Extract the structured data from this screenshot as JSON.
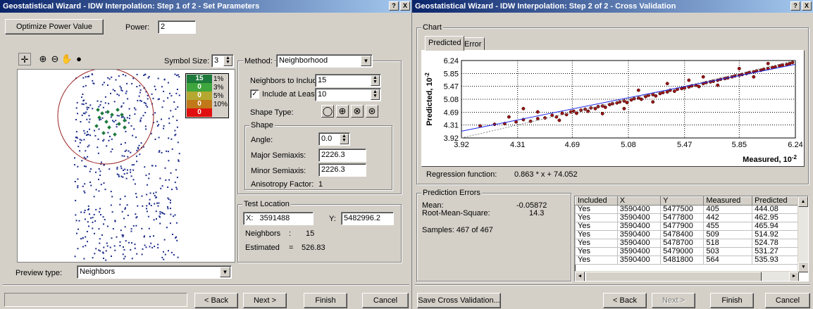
{
  "window1": {
    "title": "Geostatistical Wizard - IDW Interpolation: Step 1 of 2 - Set Parameters",
    "help_btn": "?",
    "close_btn": "X",
    "optimize_label": "Optimize Power Value",
    "power_label": "Power:",
    "power_value": "2",
    "symbol_size_label": "Symbol Size:",
    "symbol_size_value": "3",
    "legend": [
      {
        "label": "15",
        "pct": "1%",
        "color": "#1e7a3c"
      },
      {
        "label": "0",
        "pct": "3%",
        "color": "#3ea63c"
      },
      {
        "label": "0",
        "pct": "5%",
        "color": "#b4a830"
      },
      {
        "label": "0",
        "pct": "10%",
        "color": "#c07818"
      },
      {
        "label": "0",
        "pct": "",
        "color": "#e01010"
      }
    ],
    "method_label": "Method:",
    "method_value": "Neighborhood",
    "neighbors_label": "Neighbors to Include:",
    "neighbors_value": "15",
    "include_least_label": "Include at Least:",
    "include_least_value": "10",
    "include_least_checked": "✓",
    "shape_type_label": "Shape Type:",
    "shape_group_label": "Shape",
    "angle_label": "Angle:",
    "angle_value": "0.0",
    "major_label": "Major Semiaxis:",
    "major_value": "2226.3",
    "minor_label": "Minor Semiaxis:",
    "minor_value": "2226.3",
    "aniso_label": "Anisotropy Factor:",
    "aniso_value": "1",
    "test_group_label": "Test Location",
    "x_label": "X:",
    "x_value": "3591488",
    "y_label": "Y:",
    "y_value": "5482996.2",
    "neighbors_count_label": "Neighbors",
    "neighbors_count_sep": ":",
    "neighbors_count_value": "15",
    "estimated_label": "Estimated",
    "estimated_sep": "=",
    "estimated_value": "526.83",
    "preview_type_label": "Preview type:",
    "preview_type_value": "Neighbors",
    "back_btn": "< Back",
    "next_btn": "Next >",
    "finish_btn": "Finish",
    "cancel_btn": "Cancel"
  },
  "window2": {
    "title": "Geostatistical Wizard - IDW Interpolation: Step 2 of 2 - Cross Validation",
    "help_btn": "?",
    "close_btn": "X",
    "chart_group_label": "Chart",
    "tab_predicted": "Predicted",
    "tab_error": "Error",
    "regression_label": "Regression function:",
    "regression_value": "0.863 * x + 74.052",
    "pred_errors_label": "Prediction Errors",
    "mean_label": "Mean:",
    "mean_value": "-0.05872",
    "rms_label": "Root-Mean-Square:",
    "rms_value": "14.3",
    "samples_label": "Samples: 467 of 467",
    "table": {
      "headers": [
        "Included",
        "X",
        "Y",
        "Measured",
        "Predicted"
      ],
      "rows": [
        [
          "Yes",
          "3590400",
          "5477500",
          "405",
          "444.08"
        ],
        [
          "Yes",
          "3590400",
          "5477800",
          "442",
          "462.95"
        ],
        [
          "Yes",
          "3590400",
          "5477900",
          "455",
          "465.94"
        ],
        [
          "Yes",
          "3590400",
          "5478400",
          "509",
          "514.92"
        ],
        [
          "Yes",
          "3590400",
          "5478700",
          "518",
          "524.78"
        ],
        [
          "Yes",
          "3590400",
          "5479000",
          "503",
          "531.27"
        ],
        [
          "Yes",
          "3590400",
          "5481800",
          "564",
          "535.93"
        ]
      ]
    },
    "save_cv_btn": "Save Cross Validation...",
    "back_btn": "< Back",
    "next_btn": "Next >",
    "finish_btn": "Finish",
    "cancel_btn": "Cancel"
  },
  "chart_data": {
    "type": "scatter",
    "ylabel": "Predicted, 10",
    "ylabel_exp": "-2",
    "xlabel": "Measured, 10",
    "xlabel_exp": "-2",
    "x_ticks": [
      "3.92",
      "4.31",
      "4.69",
      "5.08",
      "5.47",
      "5.85",
      "6.24"
    ],
    "y_ticks": [
      "6.24",
      "5.85",
      "5.47",
      "5.08",
      "4.69",
      "4.31",
      "3.92"
    ],
    "xlim": [
      3.92,
      6.24
    ],
    "ylim": [
      3.92,
      6.24
    ],
    "regression": {
      "slope": 0.863,
      "intercept_scaled": 0.74052
    },
    "points": [
      [
        4.05,
        4.28
      ],
      [
        4.15,
        4.33
      ],
      [
        4.22,
        4.35
      ],
      [
        4.3,
        4.4
      ],
      [
        4.35,
        4.47
      ],
      [
        4.4,
        4.42
      ],
      [
        4.45,
        4.5
      ],
      [
        4.5,
        4.52
      ],
      [
        4.55,
        4.6
      ],
      [
        4.58,
        4.55
      ],
      [
        4.62,
        4.66
      ],
      [
        4.65,
        4.62
      ],
      [
        4.68,
        4.7
      ],
      [
        4.7,
        4.72
      ],
      [
        4.72,
        4.66
      ],
      [
        4.75,
        4.75
      ],
      [
        4.78,
        4.78
      ],
      [
        4.8,
        4.72
      ],
      [
        4.82,
        4.82
      ],
      [
        4.85,
        4.8
      ],
      [
        4.87,
        4.86
      ],
      [
        4.9,
        4.88
      ],
      [
        4.92,
        4.84
      ],
      [
        4.95,
        4.92
      ],
      [
        4.97,
        4.95
      ],
      [
        5.0,
        4.97
      ],
      [
        5.02,
        5.0
      ],
      [
        5.05,
        5.03
      ],
      [
        5.07,
        4.98
      ],
      [
        5.1,
        5.06
      ],
      [
        5.12,
        5.1
      ],
      [
        5.15,
        5.12
      ],
      [
        5.17,
        5.08
      ],
      [
        5.2,
        5.16
      ],
      [
        5.22,
        5.2
      ],
      [
        5.25,
        5.22
      ],
      [
        5.27,
        5.18
      ],
      [
        5.3,
        5.25
      ],
      [
        5.32,
        5.28
      ],
      [
        5.35,
        5.3
      ],
      [
        5.37,
        5.35
      ],
      [
        5.4,
        5.32
      ],
      [
        5.42,
        5.38
      ],
      [
        5.45,
        5.4
      ],
      [
        5.47,
        5.42
      ],
      [
        5.5,
        5.45
      ],
      [
        5.52,
        5.48
      ],
      [
        5.55,
        5.5
      ],
      [
        5.57,
        5.46
      ],
      [
        5.6,
        5.55
      ],
      [
        5.62,
        5.58
      ],
      [
        5.65,
        5.6
      ],
      [
        5.67,
        5.62
      ],
      [
        5.7,
        5.65
      ],
      [
        5.72,
        5.68
      ],
      [
        5.75,
        5.7
      ],
      [
        5.77,
        5.72
      ],
      [
        5.8,
        5.75
      ],
      [
        5.82,
        5.78
      ],
      [
        5.85,
        5.8
      ],
      [
        5.87,
        5.82
      ],
      [
        5.9,
        5.85
      ],
      [
        5.92,
        5.88
      ],
      [
        5.95,
        5.9
      ],
      [
        5.97,
        5.93
      ],
      [
        6.0,
        5.95
      ],
      [
        6.02,
        5.98
      ],
      [
        6.05,
        6.0
      ],
      [
        6.08,
        6.03
      ],
      [
        6.1,
        6.05
      ],
      [
        6.13,
        6.08
      ],
      [
        6.15,
        6.1
      ],
      [
        6.18,
        6.12
      ],
      [
        6.2,
        6.15
      ],
      [
        6.22,
        6.18
      ],
      [
        4.35,
        4.8
      ],
      [
        4.45,
        4.7
      ],
      [
        4.6,
        4.45
      ],
      [
        4.9,
        4.65
      ],
      [
        5.05,
        4.8
      ],
      [
        5.15,
        5.35
      ],
      [
        5.35,
        5.55
      ],
      [
        5.5,
        5.65
      ],
      [
        5.7,
        5.5
      ],
      [
        5.85,
        6.0
      ],
      [
        5.95,
        5.75
      ],
      [
        6.05,
        6.15
      ],
      [
        4.25,
        4.55
      ],
      [
        5.25,
        5.0
      ],
      [
        5.6,
        5.75
      ]
    ]
  }
}
